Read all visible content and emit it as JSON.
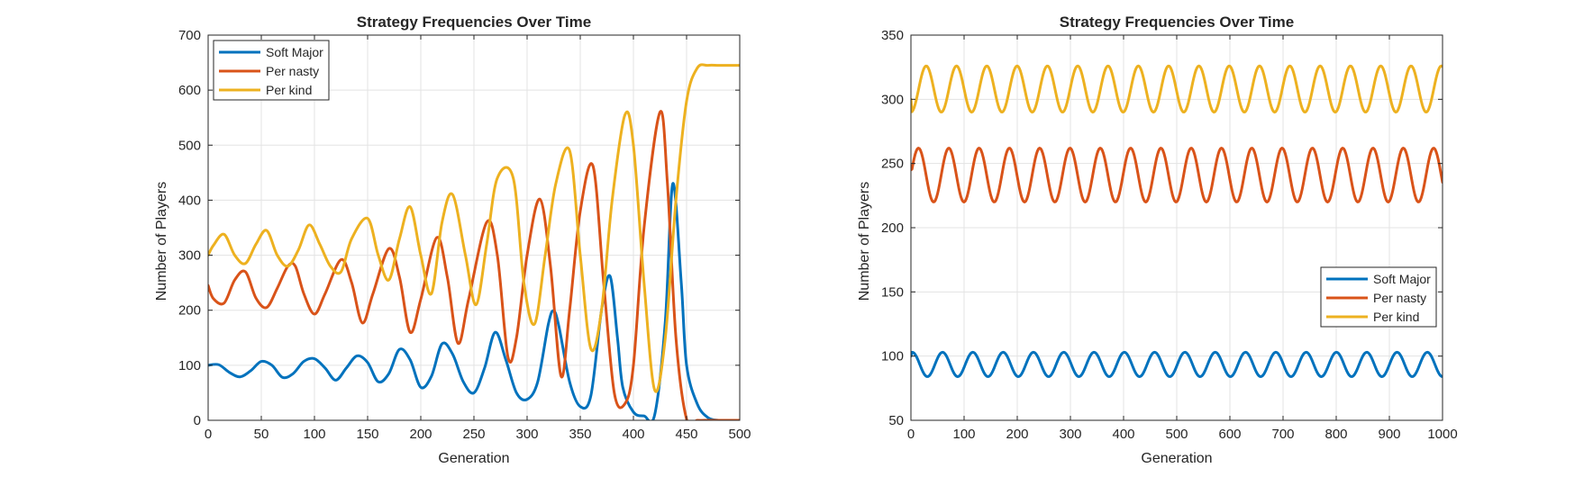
{
  "chart_data": [
    {
      "type": "line",
      "title": "Strategy Frequencies Over Time",
      "xlabel": "Generation",
      "ylabel": "Number of Players",
      "xlim": [
        0,
        500
      ],
      "ylim": [
        0,
        700
      ],
      "xticks": [
        0,
        50,
        100,
        150,
        200,
        250,
        300,
        350,
        400,
        450,
        500
      ],
      "yticks": [
        0,
        100,
        200,
        300,
        400,
        500,
        600,
        700
      ],
      "grid": true,
      "legend_position": "top-left",
      "series": [
        {
          "name": "Soft Major",
          "color": "#0072BD",
          "x": [
            0,
            10,
            20,
            30,
            40,
            50,
            60,
            70,
            80,
            90,
            100,
            110,
            120,
            130,
            140,
            150,
            160,
            170,
            180,
            190,
            200,
            210,
            220,
            230,
            240,
            250,
            260,
            270,
            280,
            290,
            300,
            310,
            320,
            325,
            330,
            340,
            350,
            360,
            370,
            378,
            385,
            390,
            400,
            410,
            420,
            430,
            437,
            445,
            450,
            460,
            470,
            480,
            490,
            500
          ],
          "y": [
            100,
            101,
            87,
            79,
            90,
            107,
            100,
            78,
            85,
            107,
            112,
            95,
            73,
            95,
            117,
            105,
            70,
            85,
            129,
            110,
            60,
            80,
            139,
            120,
            70,
            50,
            95,
            160,
            110,
            50,
            38,
            70,
            175,
            199,
            170,
            70,
            25,
            45,
            200,
            262,
            150,
            60,
            15,
            8,
            10,
            180,
            430,
            250,
            100,
            30,
            5,
            0,
            0,
            0
          ]
        },
        {
          "name": "Per nasty",
          "color": "#D95319",
          "x": [
            0,
            5,
            15,
            25,
            35,
            45,
            55,
            65,
            75,
            82,
            90,
            100,
            110,
            125,
            135,
            145,
            155,
            170,
            180,
            190,
            200,
            215,
            225,
            235,
            245,
            262,
            272,
            282,
            290,
            300,
            312,
            322,
            332,
            340,
            350,
            362,
            372,
            382,
            392,
            400,
            410,
            425,
            432,
            440,
            450,
            460,
            470,
            480,
            490,
            500
          ],
          "y": [
            245,
            221,
            213,
            255,
            270,
            222,
            205,
            240,
            280,
            280,
            230,
            193,
            230,
            292,
            250,
            177,
            230,
            312,
            260,
            160,
            220,
            332,
            260,
            140,
            220,
            360,
            300,
            115,
            150,
            300,
            402,
            280,
            80,
            200,
            380,
            462,
            250,
            50,
            30,
            100,
            350,
            560,
            430,
            150,
            2,
            0,
            0,
            0,
            0,
            0
          ]
        },
        {
          "name": "Per kind",
          "color": "#EDB120",
          "x": [
            0,
            5,
            15,
            25,
            35,
            45,
            55,
            65,
            75,
            85,
            95,
            105,
            115,
            125,
            135,
            150,
            160,
            170,
            180,
            190,
            200,
            210,
            220,
            230,
            242,
            252,
            262,
            272,
            287,
            297,
            307,
            317,
            327,
            340,
            350,
            360,
            370,
            380,
            392,
            400,
            410,
            420,
            430,
            440,
            450,
            460,
            470,
            480,
            490,
            500
          ],
          "y": [
            300,
            318,
            338,
            300,
            285,
            320,
            345,
            300,
            280,
            310,
            355,
            320,
            280,
            270,
            330,
            367,
            300,
            255,
            330,
            388,
            300,
            230,
            360,
            410,
            300,
            210,
            320,
            440,
            440,
            250,
            175,
            300,
            430,
            490,
            300,
            130,
            200,
            400,
            555,
            500,
            250,
            55,
            150,
            400,
            580,
            640,
            645,
            645,
            645,
            645
          ]
        }
      ]
    },
    {
      "type": "line",
      "title": "Strategy Frequencies Over Time",
      "xlabel": "Generation",
      "ylabel": "Number of Players",
      "xlim": [
        0,
        1000
      ],
      "ylim": [
        50,
        350
      ],
      "xticks": [
        0,
        100,
        200,
        300,
        400,
        500,
        600,
        700,
        800,
        900,
        1000
      ],
      "yticks": [
        50,
        100,
        150,
        200,
        250,
        300,
        350
      ],
      "grid": true,
      "legend_position": "bottom-right",
      "period": 57,
      "series": [
        {
          "name": "Soft Major",
          "color": "#0072BD",
          "base": 93.5,
          "amplitude": 9.5,
          "phase": 1.3,
          "start": 100
        },
        {
          "name": "Per nasty",
          "color": "#D95319",
          "base": 241,
          "amplitude": 21,
          "phase": 0.0,
          "start": 245
        },
        {
          "name": "Per kind",
          "color": "#EDB120",
          "base": 308,
          "amplitude": 18,
          "phase": -1.6,
          "start": 300
        }
      ]
    }
  ]
}
